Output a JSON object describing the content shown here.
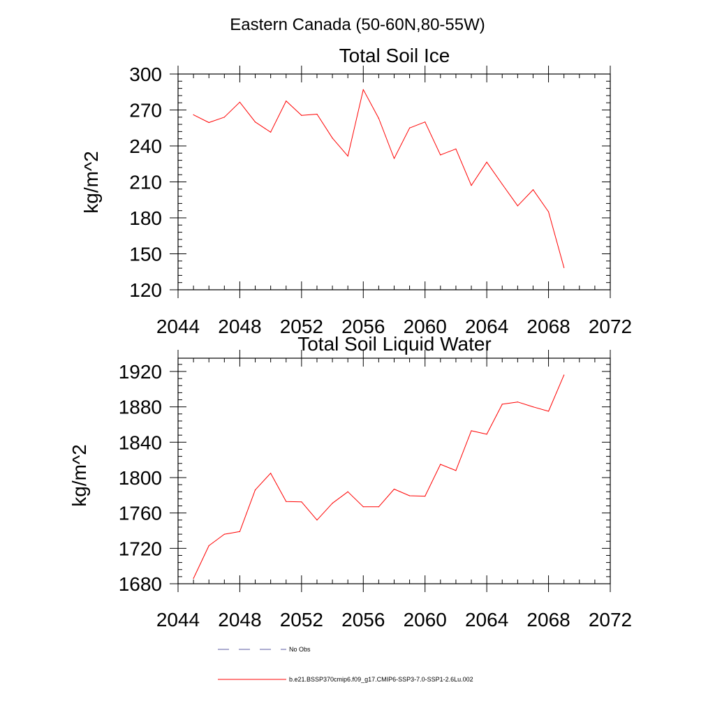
{
  "figure": {
    "title": "Eastern Canada (50-60N,80-55W)"
  },
  "chart_data": [
    {
      "type": "line",
      "title": "Total Soil Ice",
      "xlabel": "",
      "ylabel": "kg/m^2",
      "xlim": [
        2044,
        2072
      ],
      "ylim": [
        120,
        300
      ],
      "xticks": [
        2044,
        2048,
        2052,
        2056,
        2060,
        2064,
        2068,
        2072
      ],
      "yticks": [
        120,
        150,
        180,
        210,
        240,
        270,
        300
      ],
      "grid": false,
      "series": [
        {
          "name": "b.e21.BSSP370cmip6.f09_g17.CMIP6-SSP3-7.0-SSP1-2.6Lu.002",
          "color": "#ff0000",
          "x": [
            2045,
            2046,
            2047,
            2048,
            2049,
            2050,
            2051,
            2052,
            2053,
            2054,
            2055,
            2056,
            2057,
            2058,
            2059,
            2060,
            2061,
            2062,
            2063,
            2064,
            2065,
            2066,
            2067,
            2068,
            2069
          ],
          "y": [
            266,
            259.5,
            264,
            276.5,
            260,
            251.5,
            277.5,
            265.5,
            266.5,
            246.5,
            231.5,
            287,
            263,
            229.5,
            255,
            260,
            232.5,
            237.5,
            207,
            226.5,
            208,
            190,
            203.5,
            185,
            138.5
          ]
        }
      ]
    },
    {
      "type": "line",
      "title": "Total Soil Liquid Water",
      "xlabel": "",
      "ylabel": "kg/m^2",
      "xlim": [
        2044,
        2072
      ],
      "ylim": [
        1680,
        1935
      ],
      "xticks": [
        2044,
        2048,
        2052,
        2056,
        2060,
        2064,
        2068,
        2072
      ],
      "yticks": [
        1680,
        1720,
        1760,
        1800,
        1840,
        1880,
        1920
      ],
      "grid": false,
      "series": [
        {
          "name": "b.e21.BSSP370cmip6.f09_g17.CMIP6-SSP3-7.0-SSP1-2.6Lu.002",
          "color": "#ff0000",
          "x": [
            2045,
            2046,
            2047,
            2048,
            2049,
            2050,
            2051,
            2052,
            2053,
            2054,
            2055,
            2056,
            2057,
            2058,
            2059,
            2060,
            2061,
            2062,
            2063,
            2064,
            2065,
            2066,
            2067,
            2068,
            2069
          ],
          "y": [
            1686,
            1723,
            1736,
            1739,
            1786,
            1805,
            1773,
            1772.5,
            1752,
            1771,
            1784,
            1767,
            1767,
            1787,
            1779.5,
            1779,
            1815,
            1808,
            1853,
            1849,
            1883,
            1885.5,
            1880,
            1875,
            1916
          ]
        }
      ]
    }
  ],
  "legend": {
    "placement": "bottom",
    "entries": [
      {
        "label": "No Obs",
        "color": "#5a5aa0",
        "style": "dashed"
      },
      {
        "label": "b.e21.BSSP370cmip6.f09_g17.CMIP6-SSP3-7.0-SSP1-2.6Lu.002",
        "color": "#ff0000",
        "style": "solid"
      }
    ]
  }
}
